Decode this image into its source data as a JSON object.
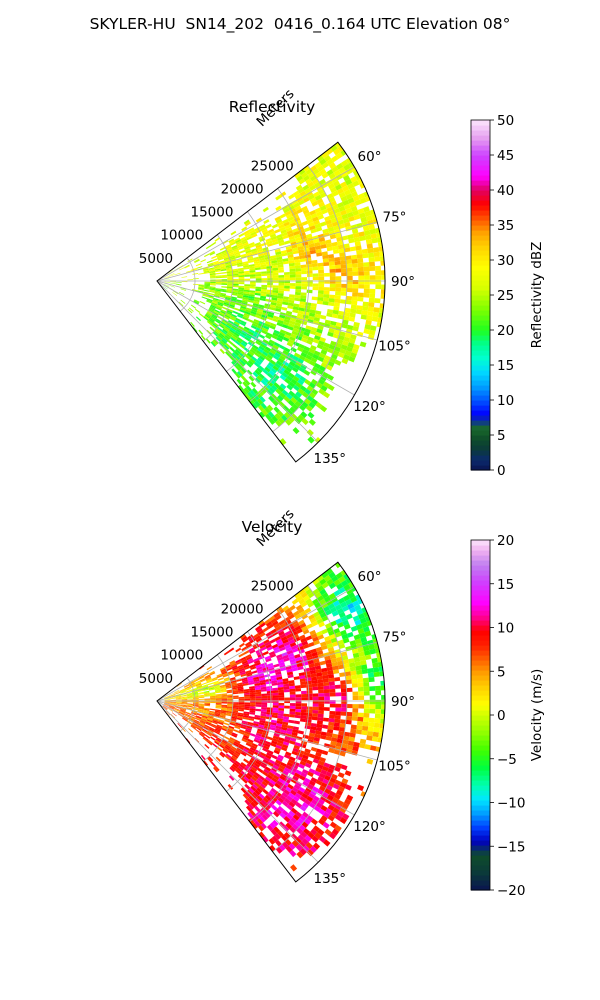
{
  "figure_title": "SKYLER-HU  SN14_202  0416_0.164 UTC Elevation 08°",
  "chart_data": [
    {
      "type": "heatmap",
      "subtype": "polar-sector-radar",
      "title": "Reflectivity",
      "radial_axis_label": "Meters",
      "radial_ticks": [
        5000,
        10000,
        15000,
        20000,
        25000
      ],
      "radial_range": [
        0,
        30000
      ],
      "azimuth_range_deg": [
        52.5,
        142.5
      ],
      "azimuth_ticks": [
        "60°",
        "75°",
        "90°",
        "105°",
        "120°",
        "135°"
      ],
      "azimuth_tick_values": [
        60,
        75,
        90,
        105,
        120,
        135
      ],
      "colorbar": {
        "label": "Reflectivity dBZ",
        "range": [
          0,
          50
        ],
        "ticks": [
          "0",
          "5",
          "10",
          "15",
          "20",
          "25",
          "30",
          "35",
          "40",
          "45",
          "50"
        ]
      },
      "cells": [
        {
          "az": 70,
          "r": 25000,
          "v": 28
        },
        {
          "az": 78,
          "r": 20000,
          "v": 36
        },
        {
          "az": 82,
          "r": 15000,
          "v": 22
        },
        {
          "az": 88,
          "r": 24000,
          "v": 38
        },
        {
          "az": 95,
          "r": 20000,
          "v": 24
        },
        {
          "az": 100,
          "r": 12000,
          "v": 20
        },
        {
          "az": 110,
          "r": 18000,
          "v": 22
        },
        {
          "az": 118,
          "r": 14000,
          "v": 18
        },
        {
          "az": 65,
          "r": 28000,
          "v": 26
        },
        {
          "az": 85,
          "r": 28000,
          "v": 30
        },
        {
          "az": 78,
          "r": 13000,
          "v": 30
        },
        {
          "az": 90,
          "r": 14000,
          "v": 27
        },
        {
          "az": 100,
          "r": 22000,
          "v": 24
        },
        {
          "az": 125,
          "r": 20000,
          "v": 16
        }
      ]
    },
    {
      "type": "heatmap",
      "subtype": "polar-sector-radar",
      "title": "Velocity",
      "radial_axis_label": "Meters",
      "radial_ticks": [
        5000,
        10000,
        15000,
        20000,
        25000
      ],
      "radial_range": [
        0,
        30000
      ],
      "azimuth_range_deg": [
        52.5,
        142.5
      ],
      "azimuth_ticks": [
        "60°",
        "75°",
        "90°",
        "105°",
        "120°",
        "135°"
      ],
      "azimuth_tick_values": [
        60,
        75,
        90,
        105,
        120,
        135
      ],
      "colorbar": {
        "label": "Velocity (m/s)",
        "range": [
          -20,
          20
        ],
        "ticks": [
          "−20",
          "−15",
          "−10",
          "−5",
          "0",
          "5",
          "10",
          "15",
          "20"
        ]
      },
      "cells": [
        {
          "az": 70,
          "r": 18000,
          "v": 15
        },
        {
          "az": 78,
          "r": 14000,
          "v": 14
        },
        {
          "az": 88,
          "r": 24000,
          "v": 15
        },
        {
          "az": 95,
          "r": 16000,
          "v": 11
        },
        {
          "az": 105,
          "r": 14000,
          "v": 11
        },
        {
          "az": 115,
          "r": 15000,
          "v": 10
        },
        {
          "az": 65,
          "r": 27000,
          "v": -12
        },
        {
          "az": 85,
          "r": 28000,
          "v": -11
        },
        {
          "az": 100,
          "r": 6000,
          "v": 4
        },
        {
          "az": 78,
          "r": 6000,
          "v": -3
        },
        {
          "az": 110,
          "r": 8000,
          "v": 6
        },
        {
          "az": 125,
          "r": 22000,
          "v": 13
        }
      ]
    }
  ]
}
